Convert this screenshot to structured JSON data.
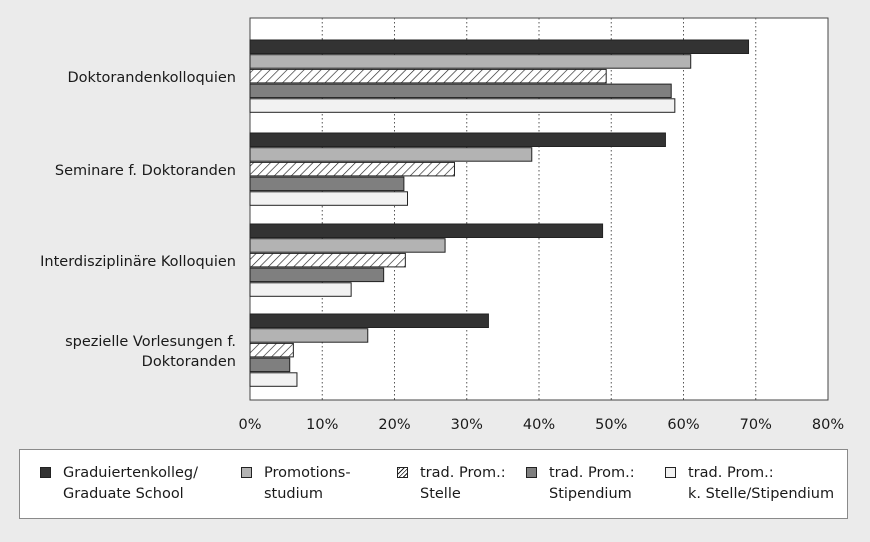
{
  "chart_data": {
    "type": "bar",
    "orientation": "horizontal",
    "categories": [
      "Doktorandenkolloquien",
      "Seminare f. Doktoranden",
      "Interdisziplinäre Kolloquien",
      "spezielle Vorlesungen f.\nDoktoranden"
    ],
    "series": [
      {
        "name": "Graduiertenkolleg/\nGraduate School",
        "values": [
          69,
          57.5,
          48.8,
          33
        ],
        "color": "#333333",
        "pattern": "solid"
      },
      {
        "name": "Promotions-\nstudium",
        "values": [
          61,
          39,
          27,
          16.3
        ],
        "color": "#b3b3b3",
        "pattern": "solid"
      },
      {
        "name": "trad. Prom.:\nStelle",
        "values": [
          49.3,
          28.3,
          21.5,
          6
        ],
        "color": "#ffffff",
        "pattern": "hatch"
      },
      {
        "name": "trad. Prom.:\nStipendium",
        "values": [
          58.3,
          21.3,
          18.5,
          5.5
        ],
        "color": "#7f7f7f",
        "pattern": "solid"
      },
      {
        "name": "trad. Prom.:\nk. Stelle/Stipendium",
        "values": [
          58.8,
          21.8,
          14,
          6.5
        ],
        "color": "#f2f2f2",
        "pattern": "solid"
      }
    ],
    "xlim": [
      0,
      80
    ],
    "xticks": [
      "0%",
      "10%",
      "20%",
      "30%",
      "40%",
      "50%",
      "60%",
      "70%",
      "80%"
    ],
    "grid": "vertical-dotted",
    "legend": "bottom",
    "title": "",
    "xlabel": "",
    "ylabel": ""
  }
}
